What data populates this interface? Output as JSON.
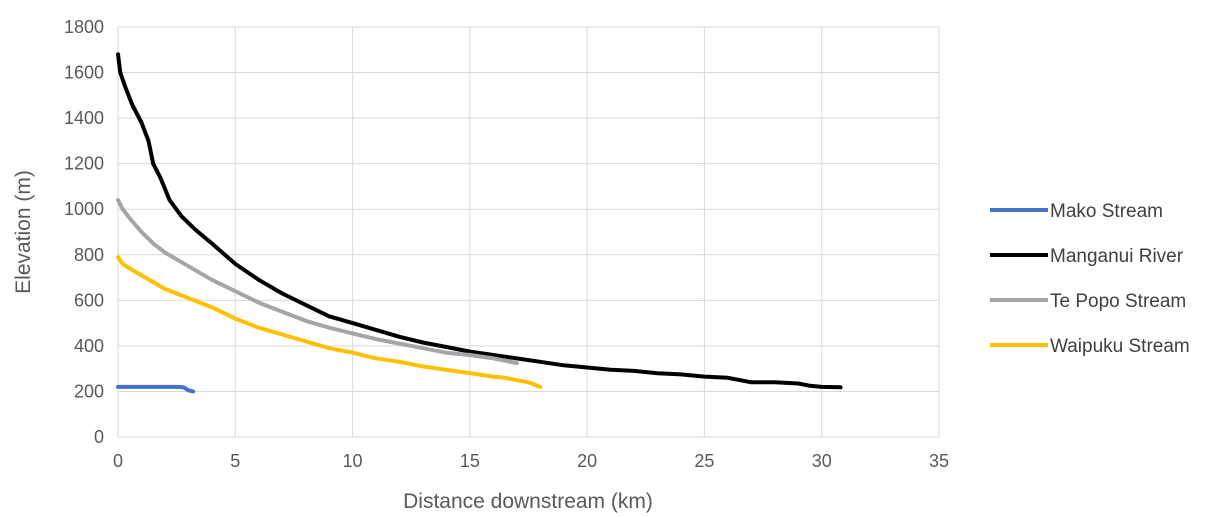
{
  "chart_data": {
    "type": "line",
    "xlabel": "Distance downstream (km)",
    "ylabel": "Elevation (m)",
    "xlim": [
      0,
      35
    ],
    "ylim": [
      0,
      1800
    ],
    "xticks": [
      0,
      5,
      10,
      15,
      20,
      25,
      30,
      35
    ],
    "yticks": [
      0,
      200,
      400,
      600,
      800,
      1000,
      1200,
      1400,
      1600,
      1800
    ],
    "grid": true,
    "legend_position": "right",
    "series": [
      {
        "name": "Mako Stream",
        "color": "#4472C4",
        "x": [
          0,
          0.5,
          1,
          1.5,
          2,
          2.5,
          2.8,
          3.0,
          3.2
        ],
        "y": [
          220,
          220,
          220,
          220,
          220,
          220,
          218,
          205,
          200
        ]
      },
      {
        "name": "Manganui River",
        "color": "#000000",
        "x": [
          0,
          0.1,
          0.3,
          0.6,
          1.0,
          1.3,
          1.5,
          1.8,
          2.2,
          2.7,
          3.3,
          4.0,
          5.0,
          6.0,
          7.0,
          8.0,
          9.0,
          10.0,
          11.0,
          12.0,
          13.0,
          14.0,
          15.0,
          16.0,
          17.0,
          18.0,
          19.0,
          20.0,
          21.0,
          22.0,
          23.0,
          24.0,
          25.0,
          26.0,
          26.5,
          27.0,
          28.0,
          29.0,
          29.5,
          30.0,
          30.8
        ],
        "y": [
          1680,
          1600,
          1540,
          1460,
          1380,
          1300,
          1200,
          1140,
          1040,
          970,
          910,
          850,
          760,
          690,
          630,
          580,
          530,
          500,
          470,
          440,
          415,
          395,
          375,
          360,
          345,
          330,
          315,
          305,
          295,
          290,
          280,
          275,
          265,
          260,
          250,
          240,
          240,
          235,
          225,
          220,
          218
        ]
      },
      {
        "name": "Te Popo Stream",
        "color": "#A5A5A5",
        "x": [
          0,
          0.2,
          0.5,
          1.0,
          1.5,
          2.0,
          3.0,
          4.0,
          5.0,
          6.0,
          7.0,
          8.0,
          9.0,
          10.0,
          11.0,
          12.0,
          13.0,
          14.0,
          15.0,
          16.0,
          17.0
        ],
        "y": [
          1040,
          1000,
          960,
          900,
          850,
          810,
          750,
          690,
          640,
          590,
          550,
          510,
          480,
          455,
          430,
          410,
          390,
          370,
          360,
          345,
          325
        ]
      },
      {
        "name": "Waipuku Stream",
        "color": "#FFC000",
        "x": [
          0,
          0.2,
          0.5,
          1.0,
          1.5,
          2.0,
          3.0,
          4.0,
          5.0,
          6.0,
          7.0,
          8.0,
          9.0,
          10.0,
          11.0,
          12.0,
          13.0,
          14.0,
          15.0,
          16.0,
          16.5,
          17.0,
          17.5,
          18.0
        ],
        "y": [
          790,
          760,
          740,
          710,
          680,
          650,
          610,
          570,
          520,
          480,
          450,
          420,
          390,
          370,
          345,
          330,
          310,
          295,
          280,
          265,
          260,
          250,
          240,
          220
        ]
      }
    ]
  }
}
